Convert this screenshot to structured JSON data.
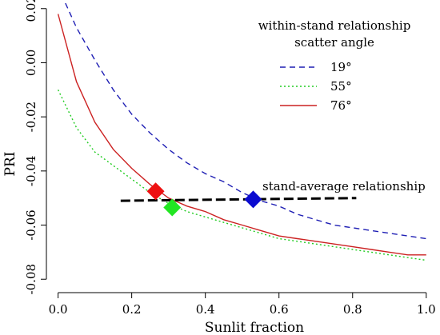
{
  "chart_data": {
    "type": "line",
    "title": "",
    "xlabel": "Sunlit fraction",
    "ylabel": "PRI",
    "xlim": [
      -0.01,
      1.02
    ],
    "ylim": [
      -0.082,
      0.022
    ],
    "xticks": [
      0.0,
      0.2,
      0.4,
      0.6,
      0.8,
      1.0
    ],
    "xtick_labels": [
      "0.0",
      "0.2",
      "0.4",
      "0.6",
      "0.8",
      "1.0"
    ],
    "yticks": [
      0.02,
      0.0,
      -0.02,
      -0.04,
      -0.06,
      -0.08
    ],
    "ytick_labels": [
      "0.02",
      "0.00",
      "-0.02",
      "-0.04",
      "-0.06",
      "-0.08"
    ],
    "grid": false,
    "legend": {
      "placement": "top-right",
      "title_line1": "within-stand relationship",
      "title_line2": "scatter angle"
    },
    "series": [
      {
        "name": "19°",
        "color": "#1f1fb4",
        "dash": "dashed",
        "x": [
          0.02,
          0.05,
          0.1,
          0.15,
          0.2,
          0.25,
          0.3,
          0.35,
          0.4,
          0.45,
          0.5,
          0.55,
          0.6,
          0.65,
          0.7,
          0.75,
          0.8,
          0.85,
          0.9,
          0.95,
          1.0
        ],
        "y": [
          0.022,
          0.013,
          0.001,
          -0.01,
          -0.019,
          -0.026,
          -0.032,
          -0.037,
          -0.041,
          -0.044,
          -0.048,
          -0.051,
          -0.053,
          -0.056,
          -0.058,
          -0.06,
          -0.061,
          -0.062,
          -0.063,
          -0.064,
          -0.065
        ]
      },
      {
        "name": "55°",
        "color": "#22cc22",
        "dash": "dotted",
        "x": [
          0.0,
          0.05,
          0.1,
          0.15,
          0.2,
          0.25,
          0.3,
          0.35,
          0.4,
          0.45,
          0.5,
          0.55,
          0.6,
          0.65,
          0.7,
          0.75,
          0.8,
          0.85,
          0.9,
          0.95,
          1.0
        ],
        "y": [
          -0.01,
          -0.024,
          -0.033,
          -0.038,
          -0.043,
          -0.048,
          -0.052,
          -0.055,
          -0.057,
          -0.059,
          -0.061,
          -0.063,
          -0.065,
          -0.066,
          -0.067,
          -0.068,
          -0.069,
          -0.07,
          -0.071,
          -0.072,
          -0.073
        ]
      },
      {
        "name": "76°",
        "color": "#cc2222",
        "dash": "solid",
        "x": [
          0.0,
          0.05,
          0.1,
          0.15,
          0.2,
          0.25,
          0.3,
          0.35,
          0.4,
          0.45,
          0.5,
          0.55,
          0.6,
          0.65,
          0.7,
          0.75,
          0.8,
          0.85,
          0.9,
          0.95,
          1.0
        ],
        "y": [
          0.018,
          -0.007,
          -0.022,
          -0.032,
          -0.039,
          -0.045,
          -0.05,
          -0.053,
          -0.055,
          -0.058,
          -0.06,
          -0.062,
          -0.064,
          -0.065,
          -0.066,
          -0.067,
          -0.068,
          -0.069,
          -0.07,
          -0.071,
          -0.071
        ]
      }
    ],
    "stand_average": {
      "label": "stand-average relationship",
      "color": "#000000",
      "x": [
        0.17,
        0.81
      ],
      "y": [
        -0.051,
        -0.05
      ]
    },
    "markers": [
      {
        "name": "19°",
        "shape": "diamond",
        "color": "#0b0bd0",
        "x": 0.53,
        "y": -0.0505
      },
      {
        "name": "55°",
        "shape": "diamond",
        "color": "#22e622",
        "x": 0.31,
        "y": -0.0535
      },
      {
        "name": "76°",
        "shape": "diamond",
        "color": "#ee1111",
        "x": 0.265,
        "y": -0.0475
      }
    ]
  }
}
